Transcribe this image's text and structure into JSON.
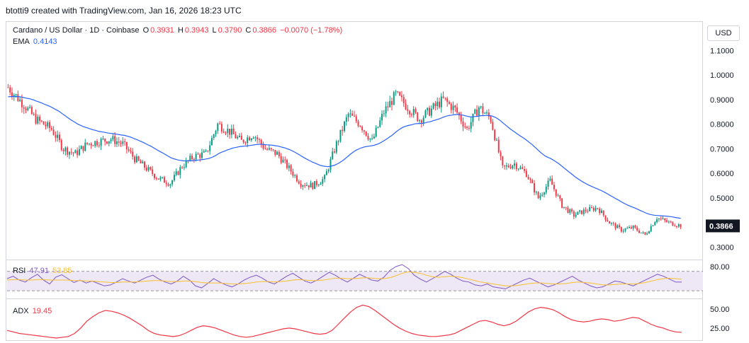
{
  "credit": "btotti9 created with TradingView.com, Jan 16, 2026 18:23 UTC",
  "currency_button": "USD",
  "legend": {
    "symbol": "Cardano / US Dollar · 1D · Coinbase",
    "open_label": "O",
    "open": "0.3931",
    "high_label": "H",
    "high": "0.3943",
    "low_label": "L",
    "low": "0.3790",
    "close_label": "C",
    "close": "0.3866",
    "change": "−0.0070 (−1.78%)",
    "ema_label": "EMA",
    "ema_value": "0.4143",
    "rsi_label": "RSI",
    "rsi_value": "47.91",
    "rsi_ma_value": "53.85",
    "adx_label": "ADX",
    "adx_value": "19.45"
  },
  "colors": {
    "up": "#089981",
    "down": "#f23645",
    "ema": "#2962ff",
    "rsi": "#7e57c2",
    "rsi_ma": "#fbc02d",
    "adx": "#f23645",
    "rsi_band": "#ede7f6",
    "last_price_bg": "#131722"
  },
  "chart_data": [
    {
      "type": "candlestick",
      "title": "Cardano / US Dollar · 1D · Coinbase",
      "y_ticks": [
        "1.1000",
        "1.0000",
        "0.9000",
        "0.8000",
        "0.7000",
        "0.6000",
        "0.5000",
        "0.3000"
      ],
      "ylim": [
        0.27,
        1.19
      ],
      "last_price": "0.3866",
      "ohlc": [],
      "overlays": [
        {
          "name": "EMA",
          "value": "0.4143"
        }
      ]
    },
    {
      "type": "line",
      "name": "RSI",
      "y_ticks": [
        "80.00"
      ],
      "bands": [
        30,
        70
      ],
      "series": [
        {
          "name": "RSI",
          "values": [
            55,
            60,
            52,
            48,
            57,
            64,
            52,
            44,
            58,
            63,
            55,
            47,
            52,
            46,
            50,
            45,
            40,
            42,
            48,
            55,
            50,
            46,
            52,
            58,
            62,
            54,
            48,
            44,
            50,
            60,
            52,
            40,
            36,
            45,
            55,
            48,
            42,
            38,
            44,
            52,
            58,
            62,
            56,
            48,
            44,
            52,
            60,
            66,
            58,
            50,
            46,
            52,
            60,
            68,
            62,
            54,
            48,
            56,
            64,
            58,
            52,
            50,
            58,
            72,
            80,
            84,
            76,
            62,
            54,
            48,
            55,
            62,
            70,
            64,
            56,
            50,
            48,
            42,
            40,
            44,
            38,
            36,
            34,
            40,
            46,
            52,
            56,
            50,
            44,
            38,
            42,
            48,
            54,
            60,
            52,
            46,
            40,
            36,
            38,
            44,
            50,
            48,
            44,
            40,
            46,
            52,
            58,
            64,
            60,
            54,
            48,
            47.91
          ]
        },
        {
          "name": "RSI MA",
          "values": [
            52,
            53,
            53,
            52,
            52,
            53,
            53,
            52,
            52,
            52,
            52,
            51,
            51,
            50,
            50,
            49,
            48,
            47,
            47,
            48,
            48,
            48,
            49,
            50,
            51,
            51,
            50,
            49,
            49,
            50,
            50,
            49,
            47,
            46,
            46,
            46,
            45,
            44,
            44,
            45,
            46,
            48,
            49,
            49,
            48,
            49,
            50,
            52,
            53,
            52,
            51,
            51,
            52,
            54,
            56,
            56,
            55,
            55,
            56,
            57,
            56,
            55,
            55,
            57,
            61,
            66,
            69,
            68,
            66,
            62,
            59,
            58,
            59,
            60,
            59,
            57,
            54,
            51,
            48,
            46,
            44,
            42,
            40,
            40,
            41,
            43,
            45,
            46,
            46,
            45,
            44,
            44,
            45,
            47,
            48,
            47,
            46,
            44,
            42,
            42,
            43,
            44,
            44,
            44,
            45,
            47,
            50,
            53,
            55,
            56,
            55,
            53.85
          ]
        }
      ]
    },
    {
      "type": "line",
      "name": "ADX",
      "y_ticks": [
        "50.00",
        "25.00"
      ],
      "series": [
        {
          "name": "ADX",
          "values": [
            22,
            20,
            18,
            17,
            16,
            15,
            14,
            13,
            12,
            13,
            14,
            18,
            25,
            34,
            40,
            45,
            48,
            47,
            45,
            42,
            38,
            33,
            28,
            22,
            18,
            16,
            15,
            14,
            15,
            18,
            22,
            26,
            28,
            27,
            25,
            22,
            19,
            16,
            14,
            13,
            14,
            16,
            18,
            20,
            22,
            24,
            25,
            24,
            22,
            20,
            18,
            17,
            18,
            22,
            30,
            38,
            46,
            52,
            55,
            53,
            48,
            42,
            36,
            30,
            25,
            21,
            18,
            16,
            15,
            14,
            14,
            15,
            16,
            18,
            22,
            26,
            30,
            34,
            35,
            33,
            30,
            28,
            30,
            34,
            40,
            46,
            50,
            52,
            51,
            49,
            45,
            40,
            36,
            34,
            33,
            34,
            36,
            37,
            36,
            34,
            35,
            37,
            39,
            38,
            34,
            30,
            27,
            25,
            22,
            20,
            19.45
          ]
        }
      ]
    }
  ]
}
